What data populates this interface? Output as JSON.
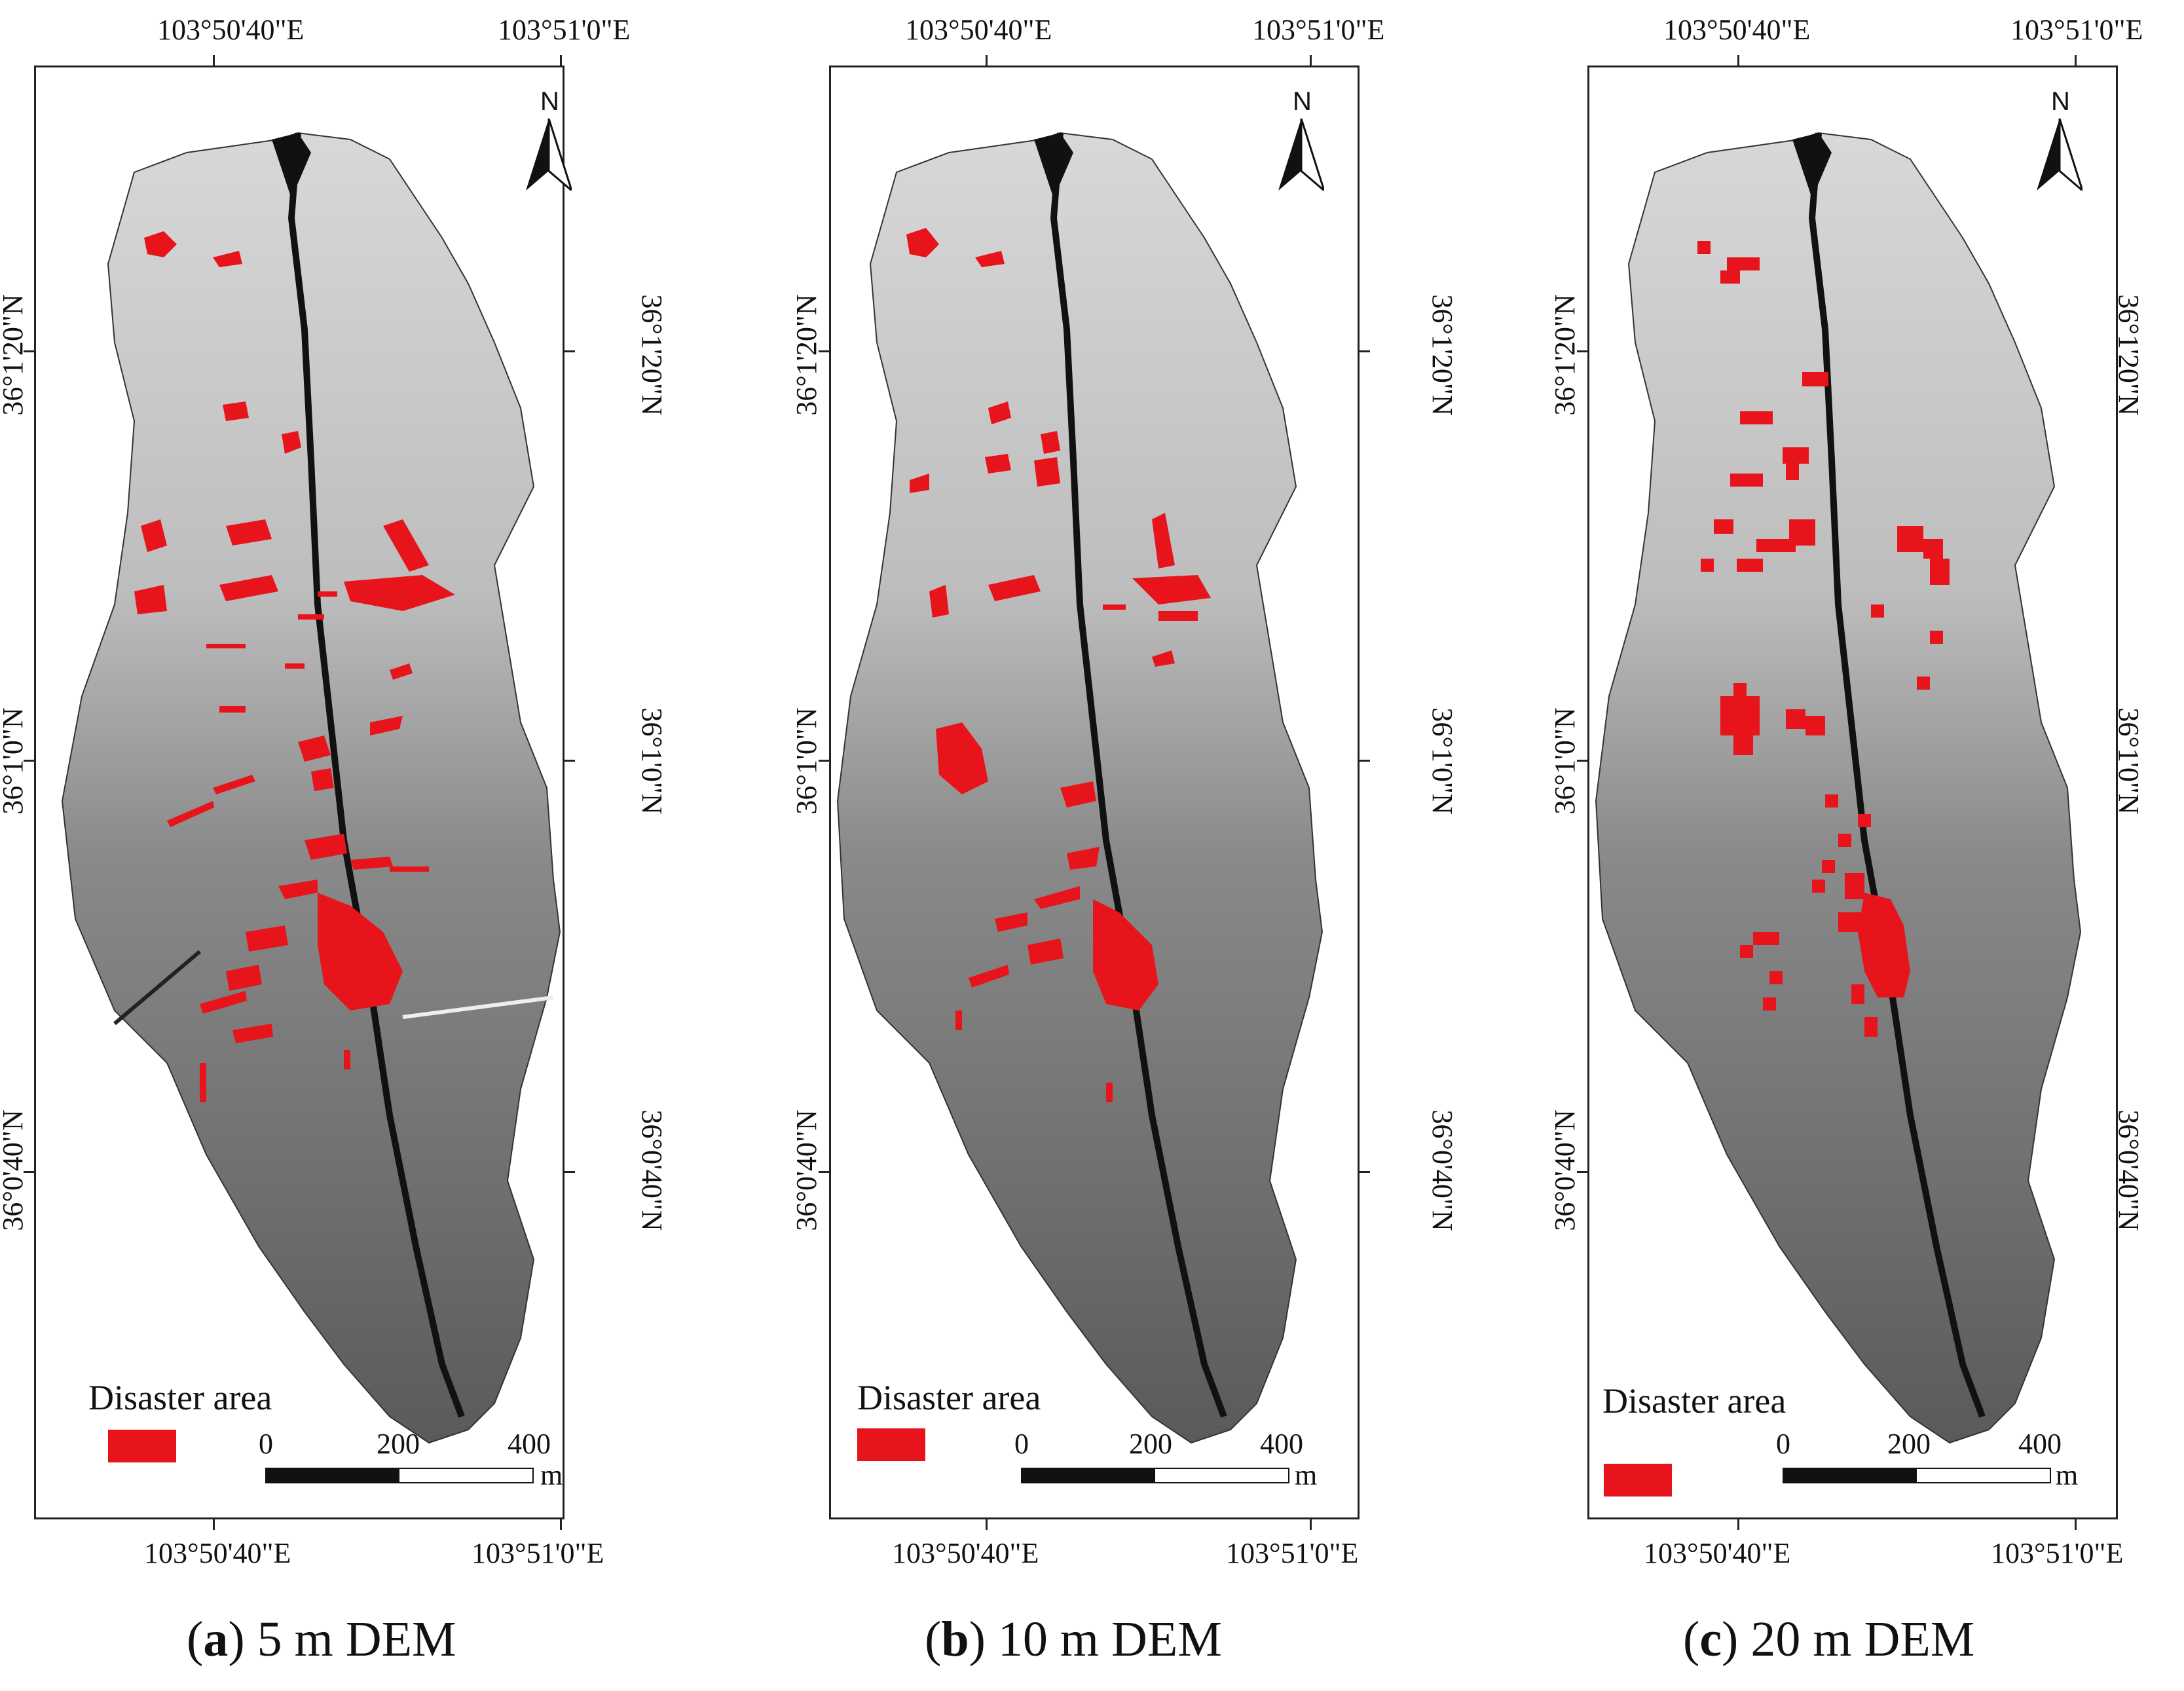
{
  "panels": [
    {
      "id": "a",
      "caption_letter": "a",
      "caption_text": "5 m DEM",
      "top_left_lon": "103°50'40\"E",
      "top_right_lon": "103°51'0\"E",
      "bottom_left_lon": "103°50'40\"E",
      "bottom_right_lon": "103°51'0\"E",
      "lat_upper": "36°1'20\"N",
      "lat_mid": "36°1'0\"N",
      "lat_lower": "36°0'40\"N",
      "north": "N",
      "legend_title": "Disaster area",
      "scale": {
        "s0": "0",
        "s1": "200",
        "s2": "400",
        "unit": "m"
      }
    },
    {
      "id": "b",
      "caption_letter": "b",
      "caption_text": "10 m DEM",
      "top_left_lon": "103°50'40\"E",
      "top_right_lon": "103°51'0\"E",
      "bottom_left_lon": "103°50'40\"E",
      "bottom_right_lon": "103°51'0\"E",
      "lat_upper": "36°1'20\"N",
      "lat_mid": "36°1'0\"N",
      "lat_lower": "36°0'40\"N",
      "north": "N",
      "legend_title": "Disaster area",
      "scale": {
        "s0": "0",
        "s1": "200",
        "s2": "400",
        "unit": "m"
      }
    },
    {
      "id": "c",
      "caption_letter": "c",
      "caption_text": "20 m DEM",
      "top_left_lon": "103°50'40\"E",
      "top_right_lon": "103°51'0\"E",
      "bottom_left_lon": "103°50'40\"E",
      "bottom_right_lon": "103°51'0\"E",
      "lat_upper": "36°1'20\"N",
      "lat_mid": "36°1'0\"N",
      "lat_lower": "36°0'40\"N",
      "north": "N",
      "legend_title": "Disaster area",
      "scale": {
        "s0": "0",
        "s1": "200",
        "s2": "400",
        "unit": "m"
      }
    }
  ],
  "colors": {
    "disaster": "#e8141b",
    "terrain_light": "#e6e6e6",
    "terrain_dark": "#4a4a4a",
    "channel": "#111111"
  }
}
